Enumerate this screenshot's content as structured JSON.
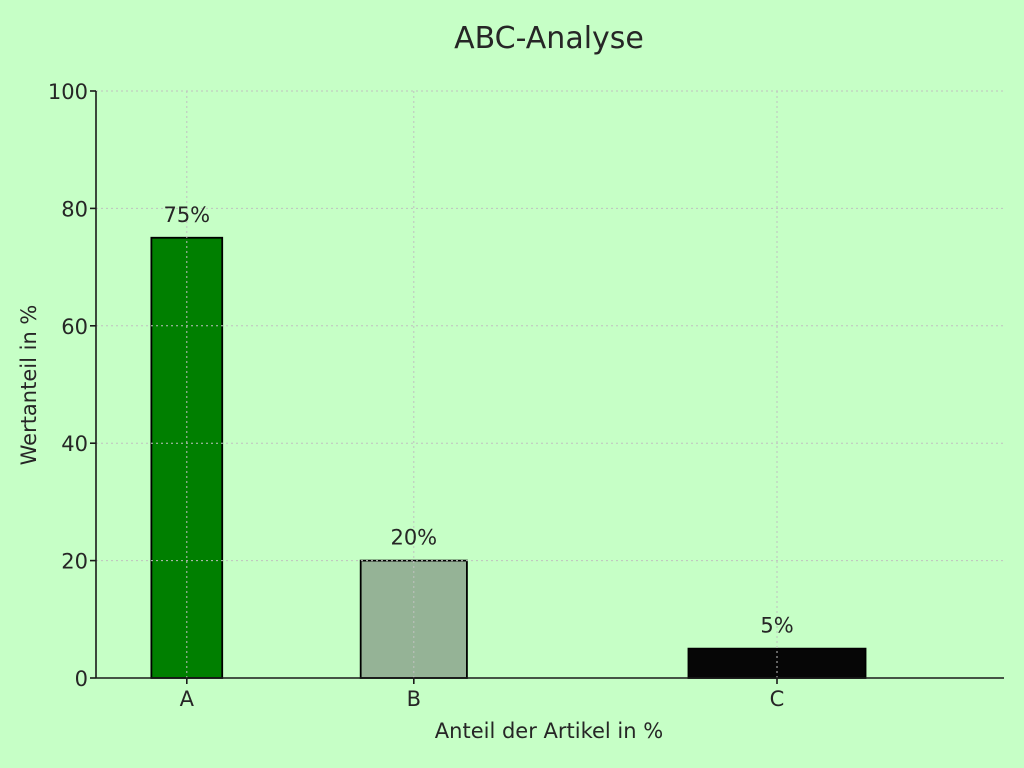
{
  "chart_data": {
    "type": "bar",
    "title": "ABC-Analyse",
    "xlabel": "Anteil der Artikel in %",
    "ylabel": "Wertanteil in %",
    "ylim": [
      0,
      100
    ],
    "yticks": [
      "0",
      "20",
      "40",
      "60",
      "80",
      "100"
    ],
    "categories": [
      "A",
      "B",
      "C"
    ],
    "x_share": [
      20,
      30,
      50
    ],
    "values": [
      75,
      20,
      5
    ],
    "data_labels": [
      "75%",
      "20%",
      "5%"
    ],
    "colors": [
      "#007f00",
      "#95b396",
      "#060606"
    ],
    "grid": true
  }
}
